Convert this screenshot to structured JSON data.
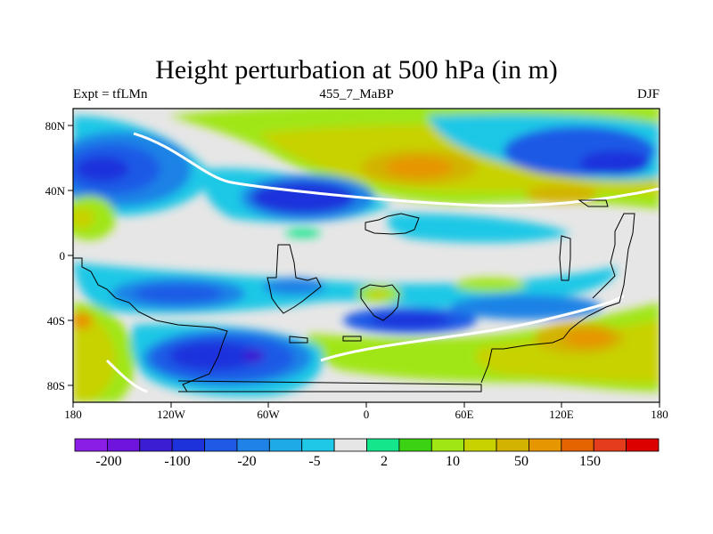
{
  "title": "Height perturbation at 500 hPa (in m)",
  "subtitle_left": "Expt = tfLMn",
  "subtitle_center": "455_7_MaBP",
  "subtitle_right": "DJF",
  "axes": {
    "lon_ticks": [
      "180",
      "120W",
      "60W",
      "0",
      "60E",
      "120E",
      "180"
    ],
    "lat_ticks": [
      "80N",
      "40N",
      "0",
      "40S",
      "80S"
    ]
  },
  "colorbar": {
    "labels": [
      "-200",
      "-100",
      "-20",
      "-5",
      "2",
      "10",
      "50",
      "150"
    ],
    "colors": [
      "#8a1ee6",
      "#6e14dc",
      "#3c1ed2",
      "#1e32dc",
      "#1e5ae6",
      "#1e82e6",
      "#1eaae6",
      "#1ec8e6",
      "#e6e6e6",
      "#14e68c",
      "#3cd214",
      "#a0e614",
      "#c8d200",
      "#d2b400",
      "#e69600",
      "#e66400",
      "#e63c1e",
      "#dc0000"
    ]
  },
  "legend_colors": {
    "neutral": "#e6e6e6",
    "coast": "#000000"
  }
}
